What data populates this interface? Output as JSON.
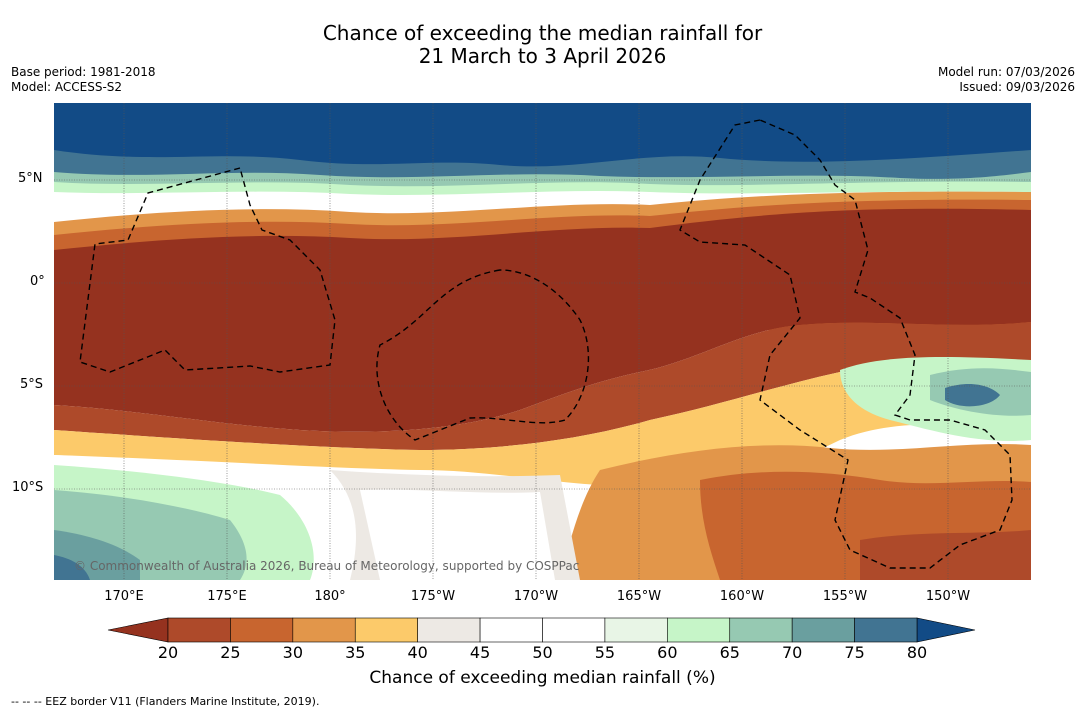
{
  "title": {
    "line1": "Chance of exceeding the median rainfall for",
    "line2": "21 March to 3 April 2026"
  },
  "meta": {
    "base_period": "Base period: 1981-2018",
    "model": "Model: ACCESS-S2",
    "model_run": "Model run: 07/03/2026",
    "issued": "Issued: 09/03/2026"
  },
  "map": {
    "credit": "© Commonwealth of Australia 2026, Bureau of Meteorology, supported by COSPPac",
    "lat_labels": [
      "5°N",
      "0°",
      "5°S",
      "10°S"
    ],
    "lon_labels": [
      "170°E",
      "175°E",
      "180°",
      "175°W",
      "170°W",
      "165°W",
      "160°W",
      "155°W",
      "150°W"
    ]
  },
  "colorbar": {
    "ticks": [
      "20",
      "25",
      "30",
      "35",
      "40",
      "45",
      "50",
      "55",
      "60",
      "65",
      "70",
      "75",
      "80"
    ],
    "colors": [
      "#ae4a2a",
      "#c8652f",
      "#e2964a",
      "#fcca6a",
      "#ede9e4",
      "#ffffff",
      "#ffffff",
      "#e8f5e6",
      "#c6f5c8",
      "#96c9b2",
      "#6a9f9f",
      "#417492"
    ],
    "under_color": "#95321f",
    "over_color": "#124b86",
    "title": "Chance of exceeding median rainfall (%)"
  },
  "legend_note": "--  --  -- EEZ border V11 (Flanders Marine Institute, 2019)."
}
